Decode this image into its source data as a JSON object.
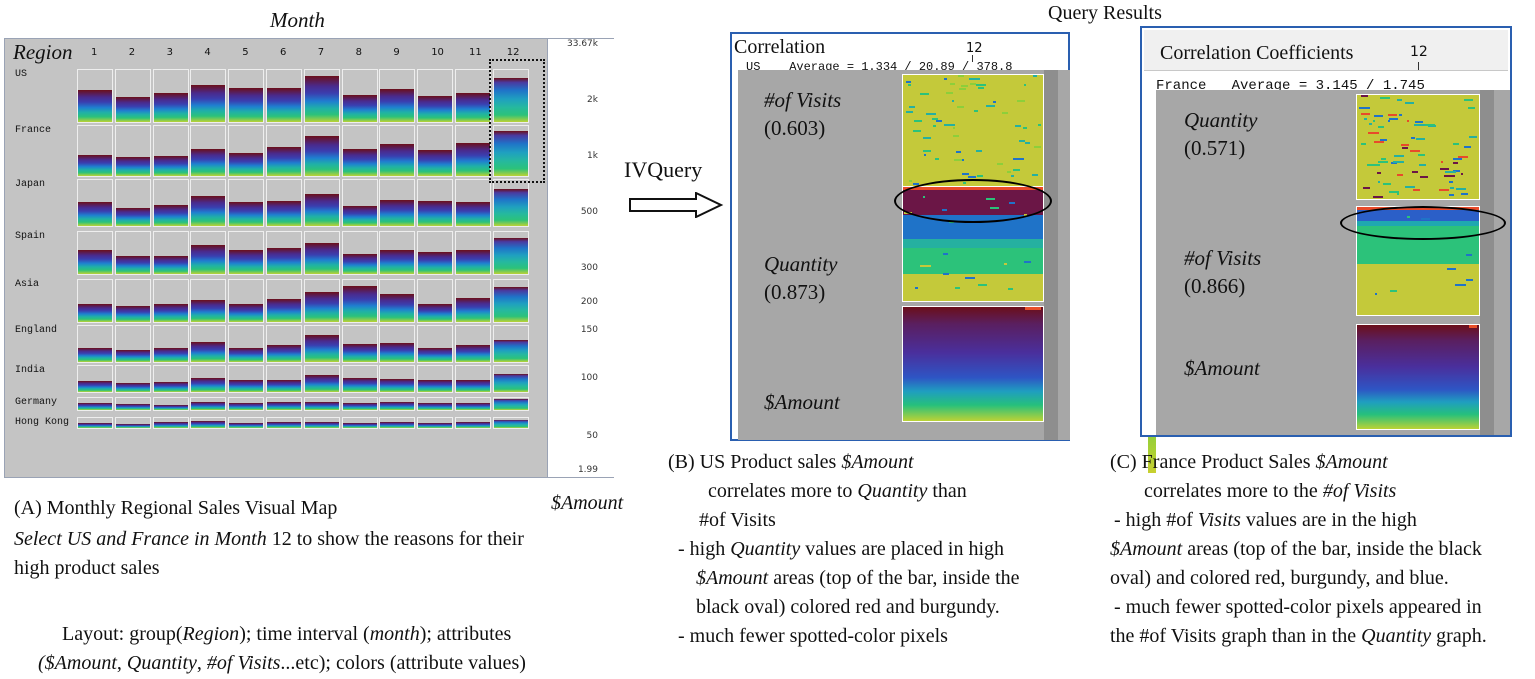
{
  "header": {
    "month_title": "Month",
    "query_results_title": "Query Results"
  },
  "panel_a": {
    "region_header": "Region",
    "months": [
      "1",
      "2",
      "3",
      "4",
      "5",
      "6",
      "7",
      "8",
      "9",
      "10",
      "11",
      "12"
    ],
    "regions": [
      "US",
      "France",
      "Japan",
      "Spain",
      "Asia",
      "England",
      "India",
      "Germany",
      "Hong Kong"
    ],
    "color_scale_labels": [
      "33.67k",
      "2k",
      "1k",
      "500",
      "300",
      "200",
      "150",
      "100",
      "50",
      "1.99"
    ],
    "color_scale_title": "$Amount",
    "colors": {
      "panel_bg": "#c4c4c4",
      "scale_top": "#6b0f1a",
      "scale_mid": "#3a3fb0",
      "scale_low": "#1fc39a",
      "scale_bottom": "#c8d030"
    }
  },
  "arrow": {
    "label": "IVQuery"
  },
  "panel_b": {
    "title": "Correlation",
    "month": "12",
    "status": "US    Average = 1.334 / 20.89 / 378.8",
    "items": [
      {
        "name": "#of Visits",
        "value": "(0.603)"
      },
      {
        "name": "Quantity",
        "value": "(0.873)"
      },
      {
        "name": "$Amount",
        "value": ""
      }
    ]
  },
  "panel_c": {
    "title": "Correlation Coefficients",
    "month": "12",
    "status": "France   Average = 3.145 / 1.745",
    "items": [
      {
        "name": "Quantity",
        "value": "(0.571)"
      },
      {
        "name": "#of Visits",
        "value": "(0.866)"
      },
      {
        "name": "$Amount",
        "value": ""
      }
    ]
  },
  "caption_a": {
    "title": "(A) Monthly Regional Sales Visual Map",
    "select_prefix": "Select US and France in Month",
    "select_month": "12",
    "select_suffix": "to show the reasons for their",
    "select_line2": "high product sales",
    "layout_line1_a": "Layout: group(",
    "layout_region": "Region",
    "layout_line1_b": "); time interval (",
    "layout_month": "month",
    "layout_line1_c": "); attributes",
    "layout_line2_a": "(",
    "layout_amount": "$Amount",
    "layout_comma1": ", ",
    "layout_quantity": "Quantity",
    "layout_comma2": ", ",
    "layout_visits": "#of Visits",
    "layout_etc": "...etc); colors (attribute values)"
  },
  "caption_b": {
    "line1_a": "(B) US Product sales",
    "line1_b": "$Amount",
    "line2_a": "correlates more to",
    "line2_b": "Quantity",
    "line2_c": "than",
    "line3": "#of Visits",
    "line4_a": "- high",
    "line4_b": "Quantity",
    "line4_c": "values are placed in high",
    "line5_a": "$Amount",
    "line5_b": "areas (top of the bar, inside the",
    "line6": "black oval) colored red and burgundy.",
    "line7": "- much fewer spotted-color pixels"
  },
  "caption_c": {
    "line1_a": "(C) France Product Sales",
    "line1_b": "$Amount",
    "line2_a": "correlates more to the",
    "line2_b": "#of Visits",
    "line3_a": "- high #of",
    "line3_b": "Visits",
    "line3_c": "values are in the high",
    "line4_a": "$Amount",
    "line4_b": "areas (top of the bar, inside the black",
    "line5": "oval) and colored red, burgundy, and blue.",
    "line6": "- much fewer spotted-color pixels appeared in",
    "line7_a": "the #of Visits graph than in the",
    "line7_b": "Quantity",
    "line7_c": "graph."
  }
}
